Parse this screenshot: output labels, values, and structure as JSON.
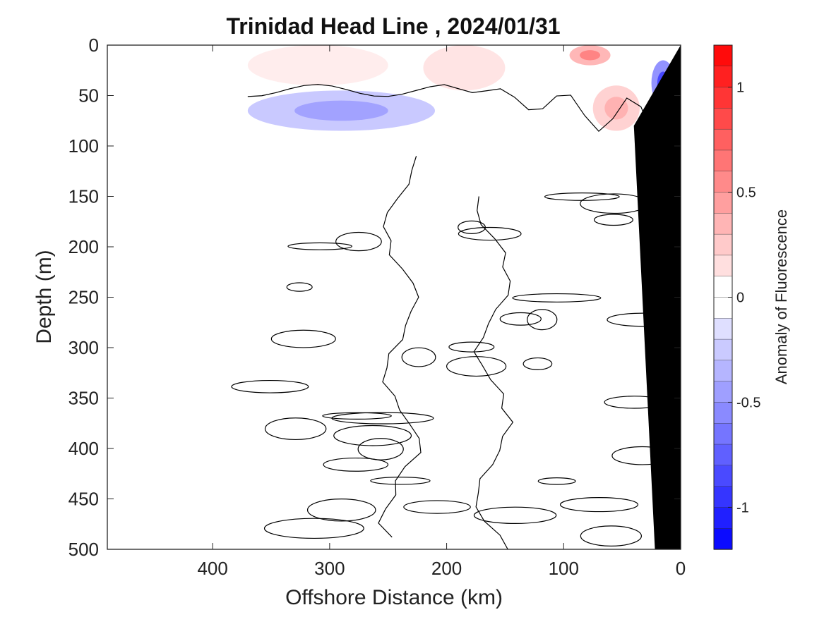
{
  "chart_data": {
    "type": "heatmap",
    "title": "Trinidad Head Line , 2024/01/31",
    "xlabel": "Offshore Distance (km)",
    "ylabel": "Depth (m)",
    "x_reversed": true,
    "xlim": [
      490,
      0
    ],
    "ylim": [
      0,
      500
    ],
    "y_reversed": true,
    "x_ticks": [
      400,
      300,
      200,
      100,
      0
    ],
    "y_ticks": [
      0,
      50,
      100,
      150,
      200,
      250,
      300,
      350,
      400,
      450,
      500
    ],
    "data_extent_km": [
      370,
      0
    ],
    "colorbar": {
      "label": "Anomaly of Fluorescence",
      "range": [
        -1.2,
        1.2
      ],
      "step": 0.1,
      "ticks": [
        1,
        0.5,
        0,
        -0.5,
        -1
      ],
      "tick_labels": [
        "1",
        "0.5",
        "0",
        "-0.5",
        "-1"
      ],
      "colors": {
        "negative": "#0000ff",
        "zero": "#ffffff",
        "positive": "#ff0000"
      }
    },
    "features": [
      {
        "name": "positive anomaly",
        "distance_km": [
          370,
          250
        ],
        "depth_m": [
          0,
          40
        ],
        "value": 0.1
      },
      {
        "name": "positive anomaly",
        "distance_km": [
          220,
          150
        ],
        "depth_m": [
          0,
          45
        ],
        "value": 0.15
      },
      {
        "name": "positive anomaly",
        "distance_km": [
          95,
          60
        ],
        "depth_m": [
          0,
          20
        ],
        "value": 0.4
      },
      {
        "name": "positive anomaly",
        "distance_km": [
          75,
          35
        ],
        "depth_m": [
          40,
          85
        ],
        "value": 0.25
      },
      {
        "name": "negative anomaly",
        "distance_km": [
          370,
          210
        ],
        "depth_m": [
          45,
          85
        ],
        "value": -0.3
      },
      {
        "name": "negative anomaly",
        "distance_km": [
          25,
          5
        ],
        "depth_m": [
          15,
          60
        ],
        "value": -0.6
      }
    ],
    "bathymetry": {
      "color": "#000000",
      "points": [
        [
          0,
          0
        ],
        [
          0,
          500
        ],
        [
          22,
          500
        ],
        [
          40,
          80
        ],
        [
          0,
          0
        ]
      ]
    }
  }
}
